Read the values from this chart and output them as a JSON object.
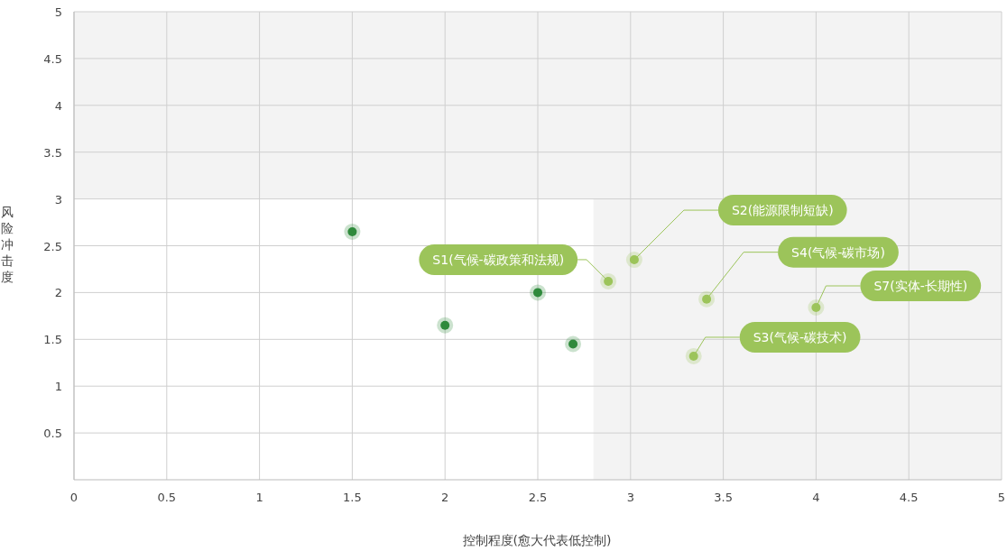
{
  "chart_data": {
    "type": "scatter",
    "xlabel": "控制程度(愈大代表低控制)",
    "ylabel": "风险冲击度",
    "xlim": [
      0,
      5
    ],
    "ylim": [
      0,
      5
    ],
    "xticks": [
      0,
      0.5,
      1,
      1.5,
      2,
      2.5,
      3,
      3.5,
      4,
      4.5,
      5
    ],
    "yticks": [
      0.5,
      1,
      1.5,
      2,
      2.5,
      3,
      3.5,
      4,
      4.5,
      5
    ],
    "grid": true,
    "marker": "circle",
    "bands": [
      {
        "axis": "y",
        "from": 3,
        "to": 5,
        "color": "#f3f3f3"
      },
      {
        "axis": "x",
        "from": 2.8,
        "to": 5,
        "color": "#f3f3f3"
      }
    ],
    "series": [
      {
        "color": "#2f8a3c",
        "x": [
          1.5,
          2,
          2.5,
          2.69
        ],
        "values": [
          2.65,
          1.65,
          2.0,
          1.45
        ]
      },
      {
        "color": "#9cc45a",
        "x": [
          2.88,
          3.02,
          3.41,
          4.0,
          3.34
        ],
        "values": [
          2.12,
          2.35,
          1.93,
          1.84,
          1.32
        ]
      }
    ],
    "annotations": [
      {
        "text": "S1(气候-碳政策和法规)",
        "x": 2.88,
        "y": 2.12
      },
      {
        "text": "S2(能源限制短缺)",
        "x": 3.02,
        "y": 2.35
      },
      {
        "text": "S4(气候-碳市场)",
        "x": 3.41,
        "y": 1.93
      },
      {
        "text": "S7(实体-长期性)",
        "x": 4.0,
        "y": 1.84
      },
      {
        "text": "S3(气候-碳技术)",
        "x": 3.34,
        "y": 1.32
      }
    ]
  }
}
